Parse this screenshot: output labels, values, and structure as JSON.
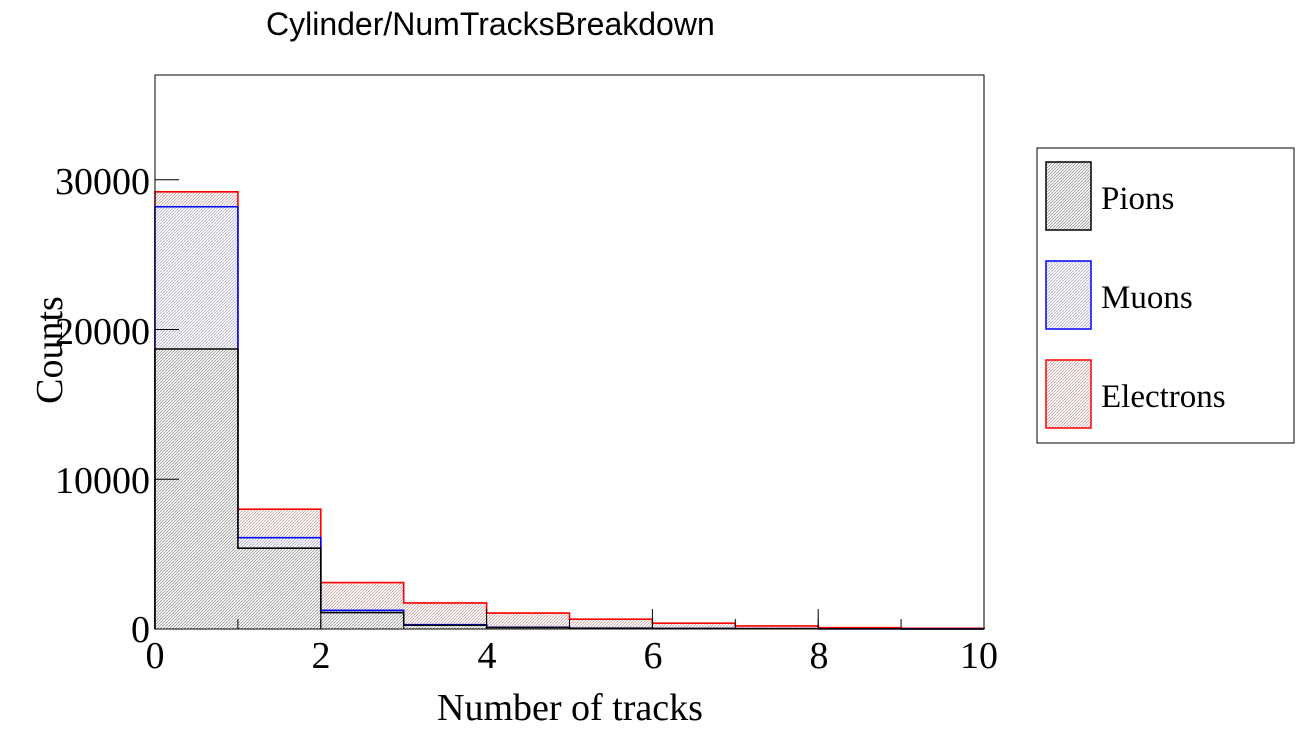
{
  "chart_data": {
    "type": "bar",
    "title": "Cylinder/NumTracksBreakdown",
    "xlabel": "Number of tracks",
    "ylabel": "Counts",
    "xlim": [
      0,
      10
    ],
    "ylim": [
      0,
      37000
    ],
    "x_ticks": [
      "0",
      "2",
      "4",
      "6",
      "8",
      "10"
    ],
    "y_ticks": [
      "0",
      "10000",
      "20000",
      "30000"
    ],
    "bin_edges": [
      0,
      1,
      2,
      3,
      4,
      5,
      6,
      7,
      8,
      9,
      10
    ],
    "stacked": true,
    "legend_position": "right",
    "series": [
      {
        "name": "Pions",
        "color": "#000000",
        "values": [
          18700,
          5400,
          1100,
          250,
          100,
          50,
          30,
          20,
          10,
          5
        ]
      },
      {
        "name": "Muons",
        "color": "#0000ff",
        "values": [
          9500,
          700,
          150,
          40,
          15,
          8,
          5,
          3,
          2,
          1
        ]
      },
      {
        "name": "Electrons",
        "color": "#ff0000",
        "values": [
          1000,
          1900,
          1850,
          1450,
          950,
          600,
          350,
          180,
          80,
          40
        ]
      }
    ]
  }
}
